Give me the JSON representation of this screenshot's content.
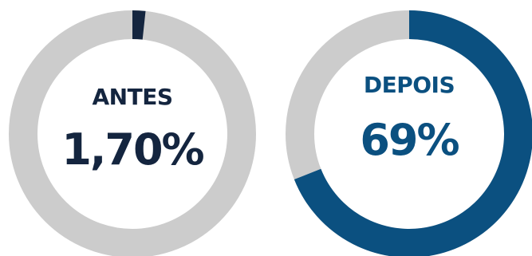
{
  "chart_data": [
    {
      "type": "pie",
      "variant": "donut",
      "title": "ANTES",
      "value_label": "1,70%",
      "value": 1.7,
      "max": 100,
      "fill_color": "#14253f",
      "track_color": "#cccccc"
    },
    {
      "type": "pie",
      "variant": "donut",
      "title": "DEPOIS",
      "value_label": "69%",
      "value": 69,
      "max": 100,
      "fill_color": "#0b5080",
      "track_color": "#cccccc"
    }
  ]
}
